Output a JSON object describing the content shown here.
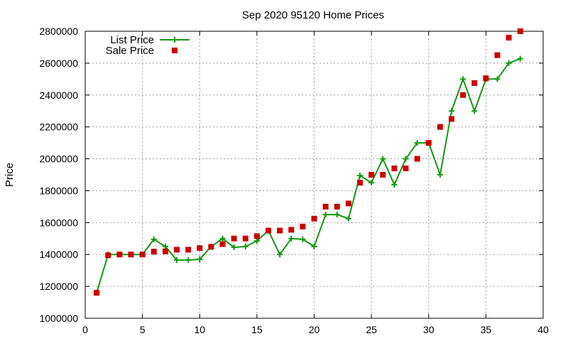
{
  "chart_data": {
    "type": "line",
    "title": "Sep 2020 95120 Home Prices",
    "xlabel": "",
    "ylabel": "Price",
    "xlim": [
      0,
      40
    ],
    "ylim": [
      1000000,
      2800000
    ],
    "xticks": [
      0,
      5,
      10,
      15,
      20,
      25,
      30,
      35,
      40
    ],
    "yticks": [
      1000000,
      1200000,
      1400000,
      1600000,
      1800000,
      2000000,
      2200000,
      2400000,
      2600000,
      2800000
    ],
    "grid": true,
    "legend_position": "top-left",
    "series": [
      {
        "name": "List Price",
        "style": "line-plus",
        "color": "#119911",
        "x": [
          1,
          2,
          3,
          4,
          5,
          6,
          7,
          8,
          9,
          10,
          11,
          12,
          13,
          14,
          15,
          16,
          17,
          18,
          19,
          20,
          21,
          22,
          23,
          24,
          25,
          26,
          27,
          28,
          29,
          30,
          31,
          32,
          33,
          34,
          35,
          36,
          37,
          38
        ],
        "y": [
          1160000,
          1400000,
          1400000,
          1400000,
          1400000,
          1495000,
          1450000,
          1365000,
          1365000,
          1370000,
          1450000,
          1500000,
          1445000,
          1450000,
          1485000,
          1550000,
          1400000,
          1500000,
          1495000,
          1450000,
          1650000,
          1650000,
          1625000,
          1895000,
          1850000,
          2000000,
          1838000,
          2000000,
          2100000,
          2100000,
          1900000,
          2300000,
          2500000,
          2300000,
          2500000,
          2500000,
          2600000,
          2628000
        ]
      },
      {
        "name": "Sale Price",
        "style": "square",
        "color": "#cc0000",
        "x": [
          1,
          2,
          3,
          4,
          5,
          6,
          7,
          8,
          9,
          10,
          11,
          12,
          13,
          14,
          15,
          16,
          17,
          18,
          19,
          20,
          21,
          22,
          23,
          24,
          25,
          26,
          27,
          28,
          29,
          30,
          31,
          32,
          33,
          34,
          35,
          36,
          37,
          38
        ],
        "y": [
          1160000,
          1395000,
          1400000,
          1400000,
          1400000,
          1418000,
          1420000,
          1430000,
          1430000,
          1440000,
          1448000,
          1465000,
          1500000,
          1500000,
          1515000,
          1550000,
          1550000,
          1555000,
          1575000,
          1625000,
          1700000,
          1700000,
          1720000,
          1850000,
          1900000,
          1900000,
          1940000,
          1940000,
          2000000,
          2100000,
          2200000,
          2250000,
          2400000,
          2475000,
          2505000,
          2650000,
          2760000,
          2800000
        ]
      }
    ]
  }
}
